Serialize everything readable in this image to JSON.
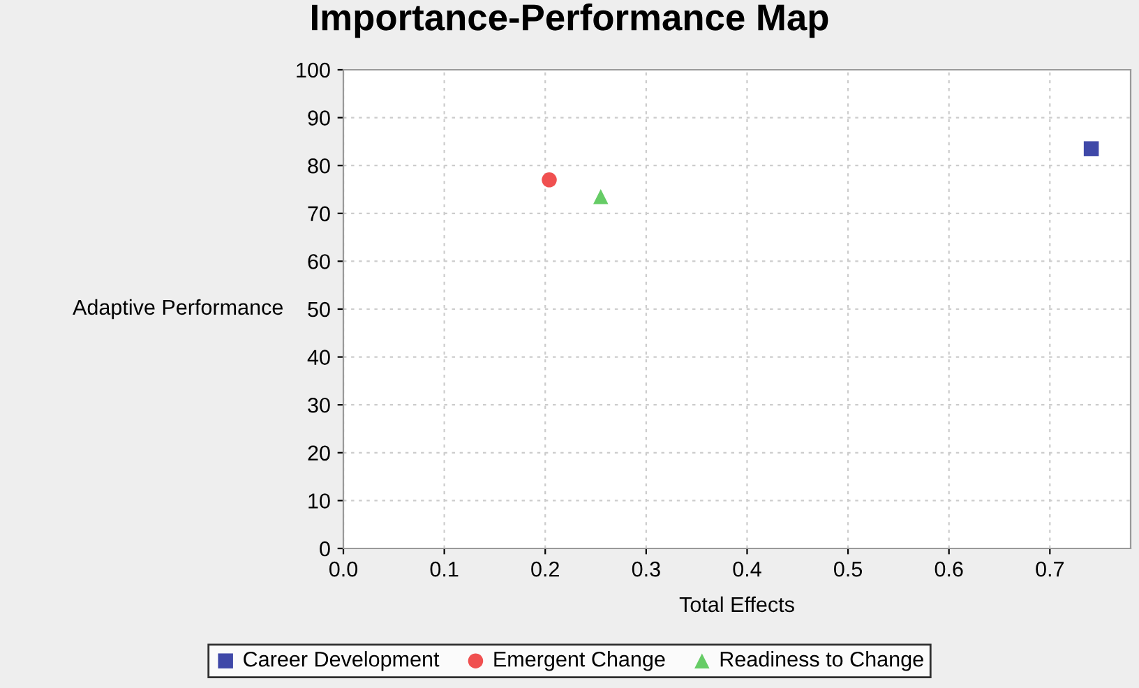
{
  "chart_data": {
    "type": "scatter",
    "title": "Importance-Performance Map",
    "xlabel": "Total Effects",
    "ylabel": "Adaptive Performance",
    "xlim": [
      0,
      0.78
    ],
    "xticks": [
      {
        "value": 0,
        "label": "0.0"
      },
      0.1,
      0.2,
      0.3,
      0.4,
      0.5,
      0.6,
      0.7
    ],
    "ylim": [
      0,
      100
    ],
    "yticks": [
      0,
      10,
      20,
      30,
      40,
      50,
      60,
      70,
      80,
      90,
      100
    ],
    "grid": true,
    "legend": "bottom",
    "series": [
      {
        "name": "Career Development",
        "color": "#3f48a8",
        "marker": "square",
        "x": [
          0.741
        ],
        "values": [
          83.5
        ]
      },
      {
        "name": "Emergent Change",
        "color": "#f05050",
        "marker": "circle",
        "x": [
          0.204
        ],
        "values": [
          77
        ]
      },
      {
        "name": "Readiness to Change",
        "color": "#66cc66",
        "marker": "triangle",
        "x": [
          0.255
        ],
        "values": [
          73.5
        ]
      }
    ]
  }
}
